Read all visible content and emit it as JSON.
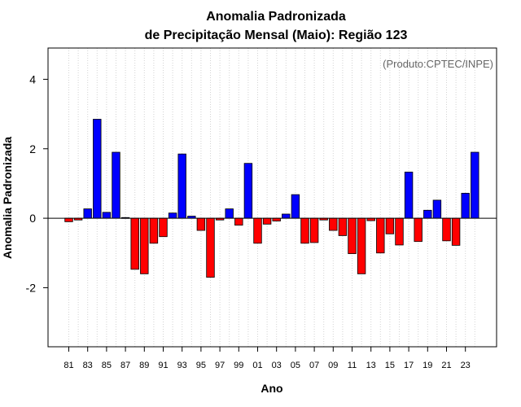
{
  "chart_data": {
    "type": "bar",
    "title_line1": "Anomalia Padronizada",
    "title_line2": "de Precipitação Mensal (Maio): Região 123",
    "xlabel": "Ano",
    "ylabel": "Anomalia Padronizada",
    "source": "(Produto:CPTEC/INPE)",
    "ylim": [
      -3.7,
      4.9
    ],
    "yticks": [
      -2,
      0,
      2,
      4
    ],
    "grid": "vertical dotted",
    "positive_color": "#0000ff",
    "negative_color": "#ff0000",
    "categories": [
      "81",
      "82",
      "83",
      "84",
      "85",
      "86",
      "87",
      "88",
      "89",
      "90",
      "91",
      "92",
      "93",
      "94",
      "95",
      "96",
      "97",
      "98",
      "99",
      "00",
      "01",
      "02",
      "03",
      "04",
      "05",
      "06",
      "07",
      "08",
      "09",
      "10",
      "11",
      "12",
      "13",
      "14",
      "15",
      "16",
      "17",
      "18",
      "19",
      "20",
      "21",
      "22",
      "23",
      "24"
    ],
    "tick_labels": [
      "81",
      "83",
      "85",
      "87",
      "89",
      "91",
      "93",
      "95",
      "97",
      "99",
      "01",
      "03",
      "05",
      "07",
      "09",
      "11",
      "13",
      "15",
      "17",
      "19",
      "21",
      "23"
    ],
    "values": [
      -0.1,
      -0.05,
      0.27,
      2.85,
      0.17,
      1.9,
      0.02,
      -1.47,
      -1.6,
      -0.72,
      -0.53,
      0.15,
      1.85,
      0.06,
      -0.35,
      -1.7,
      -0.05,
      0.27,
      -0.2,
      1.58,
      -0.72,
      -0.17,
      -0.08,
      0.12,
      0.68,
      -0.72,
      -0.7,
      -0.05,
      -0.35,
      -0.5,
      -1.02,
      -1.6,
      -0.07,
      -1.0,
      -0.45,
      -0.77,
      1.33,
      -0.67,
      0.23,
      0.52,
      -0.65,
      -0.78,
      0.72,
      1.9
    ]
  }
}
